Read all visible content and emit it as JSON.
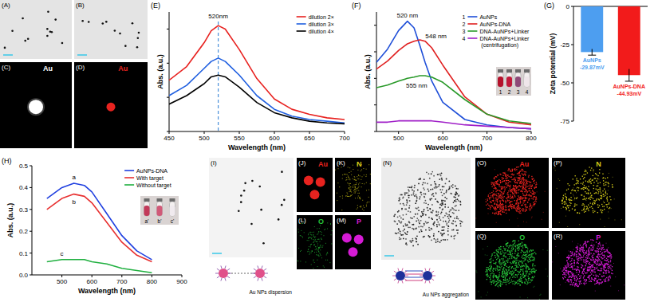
{
  "image_panels": [
    {
      "panel_label": "(A)"
    },
    {
      "panel_label": "(B)"
    },
    {
      "panel_label": "(C)",
      "element": "Au",
      "color": "#ffffff"
    },
    {
      "panel_label": "(D)",
      "element": "Au",
      "color": "#e8231f"
    },
    {
      "panel_label": "(I)",
      "caption": "Au NPs dispersion"
    },
    {
      "panel_label": "(J)",
      "element": "Au",
      "color": "#e8231f"
    },
    {
      "panel_label": "(K)",
      "element": "N",
      "color": "#d8cf1a"
    },
    {
      "panel_label": "(L)",
      "element": "O",
      "color": "#27c23a"
    },
    {
      "panel_label": "(M)",
      "element": "P",
      "color": "#d51bd5"
    },
    {
      "panel_label": "(N)",
      "caption": "Au NPs aggregation"
    },
    {
      "panel_label": "(O)",
      "element": "Au",
      "color": "#e8231f"
    },
    {
      "panel_label": "(P)",
      "element": "N",
      "color": "#d8cf1a"
    },
    {
      "panel_label": "(Q)",
      "element": "O",
      "color": "#27c23a"
    },
    {
      "panel_label": "(R)",
      "element": "P",
      "color": "#d51bd5"
    }
  ],
  "chart_data": [
    {
      "type": "line",
      "panel_label": "(E)",
      "x_label": "Wavelength (nm)",
      "y_label": "Abs. (a.u.)",
      "x": [
        450,
        475,
        500,
        510,
        520,
        530,
        550,
        575,
        600,
        625,
        650,
        675,
        700
      ],
      "series": [
        {
          "name": "dilution 2×",
          "color": "#e8211f",
          "values": [
            0.3,
            0.38,
            0.52,
            0.59,
            0.62,
            0.6,
            0.48,
            0.31,
            0.19,
            0.13,
            0.1,
            0.08,
            0.07
          ]
        },
        {
          "name": "dilution 3×",
          "color": "#1f5fe0",
          "values": [
            0.21,
            0.27,
            0.37,
            0.41,
            0.43,
            0.41,
            0.33,
            0.21,
            0.13,
            0.09,
            0.07,
            0.06,
            0.05
          ]
        },
        {
          "name": "dilution 4×",
          "color": "#000000",
          "values": [
            0.16,
            0.21,
            0.28,
            0.32,
            0.33,
            0.32,
            0.26,
            0.17,
            0.11,
            0.08,
            0.06,
            0.05,
            0.045
          ]
        }
      ],
      "xlim": [
        450,
        700
      ],
      "xticks": [
        450,
        500,
        550,
        600,
        650,
        700
      ],
      "ylim": [
        0,
        0.7
      ],
      "yticks": [
        0,
        0.2,
        0.4,
        0.6
      ],
      "tick_labels": "x",
      "legend": "top-right",
      "annotations": [
        {
          "text": "520nm",
          "x": 520
        }
      ]
    },
    {
      "type": "line",
      "panel_label": "(F)",
      "x_label": "Wavelength (nm)",
      "y_label": "Abs. (a.u.)",
      "x": [
        450,
        475,
        500,
        520,
        535,
        548,
        560,
        575,
        600,
        650,
        700,
        750,
        800
      ],
      "series": [
        {
          "key": "1",
          "name": "AuNPs",
          "color": "#1f4fd8",
          "annotation": "520 nm",
          "values": [
            0.52,
            0.62,
            0.76,
            0.83,
            0.78,
            0.65,
            0.52,
            0.38,
            0.22,
            0.09,
            0.05,
            0.03,
            0.02
          ]
        },
        {
          "key": "2",
          "name": "AuNPs-DNA",
          "color": "#e02020",
          "annotation": "548 nm",
          "values": [
            0.47,
            0.53,
            0.61,
            0.66,
            0.68,
            0.69,
            0.68,
            0.63,
            0.5,
            0.26,
            0.13,
            0.07,
            0.05
          ]
        },
        {
          "key": "3",
          "name": "DNA-AuNPs+Linker",
          "color": "#2a9a2a",
          "annotation": "555 nm",
          "values": [
            0.33,
            0.35,
            0.38,
            0.4,
            0.41,
            0.42,
            0.42,
            0.41,
            0.37,
            0.24,
            0.13,
            0.08,
            0.06
          ]
        },
        {
          "key": "4",
          "name": "DNA-AuNPs+Linker (centrifugation)",
          "color": "#a020c8",
          "values": [
            0.07,
            0.07,
            0.08,
            0.08,
            0.08,
            0.08,
            0.08,
            0.08,
            0.07,
            0.05,
            0.04,
            0.03,
            0.02
          ]
        }
      ],
      "xlim": [
        450,
        800
      ],
      "xticks": [
        500,
        600,
        700,
        800
      ],
      "ylim": [
        0,
        0.9
      ],
      "yticks": [
        0,
        0.2,
        0.4,
        0.6,
        0.8
      ],
      "tick_labels": "x",
      "legend": "top-right",
      "inset_labels": [
        "1",
        "2",
        "3",
        "4"
      ]
    },
    {
      "type": "bar",
      "panel_label": "(G)",
      "y_label": "Zeta potential (mV)",
      "categories": [
        "AuNPs",
        "AuNPs-DNA"
      ],
      "values": [
        -29.87,
        -44.93
      ],
      "errors": [
        2,
        4
      ],
      "value_labels": [
        "-29.87mV",
        "-44.93mV"
      ],
      "colors": [
        "#4d9ef0",
        "#f21b1b"
      ],
      "ylim": [
        -75,
        0
      ],
      "yticks": [
        0,
        -25,
        -50,
        -75
      ],
      "data_labels": true
    },
    {
      "type": "line",
      "panel_label": "(H)",
      "x_label": "Wavelength (nm)",
      "y_label": "Abs. (a.u.)",
      "x": [
        450,
        500,
        540,
        575,
        600,
        650,
        700,
        750,
        800
      ],
      "series": [
        {
          "name": "AuNPs-DNA",
          "color": "#2040e0",
          "annotation": "a",
          "values": [
            0.35,
            0.4,
            0.42,
            0.41,
            0.38,
            0.28,
            0.18,
            0.11,
            0.07
          ]
        },
        {
          "name": "With target",
          "color": "#e83030",
          "annotation": "b",
          "values": [
            0.3,
            0.35,
            0.37,
            0.36,
            0.33,
            0.24,
            0.15,
            0.09,
            0.06
          ]
        },
        {
          "name": "Without target",
          "color": "#20b040",
          "annotation": "c",
          "values": [
            0.06,
            0.07,
            0.07,
            0.07,
            0.06,
            0.05,
            0.03,
            0.02,
            0.01
          ]
        }
      ],
      "xlim": [
        400,
        900
      ],
      "xticks": [
        500,
        600,
        700,
        800,
        900
      ],
      "ylim": [
        0,
        0.5
      ],
      "yticks": [
        {
          "value": 0,
          "label": "0.0"
        },
        0.1,
        0.2,
        0.3,
        0.4,
        0.5
      ],
      "legend": "top-right",
      "inset_labels": [
        "a'",
        "b'",
        "c'"
      ]
    }
  ]
}
